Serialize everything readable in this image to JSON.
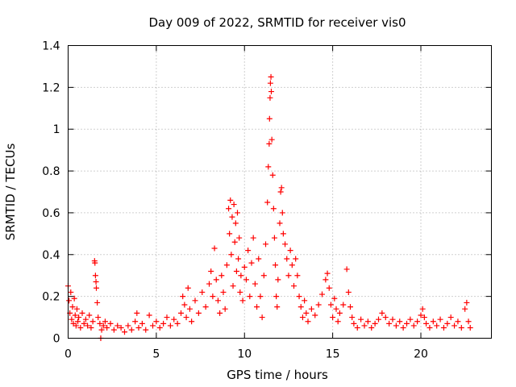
{
  "chart_data": {
    "type": "scatter",
    "title": "Day 009 of 2022, SRMTID for receiver vis0",
    "xlabel": "GPS time / hours",
    "ylabel": "SRMTID / TECUs",
    "xlim": [
      0,
      24
    ],
    "ylim": [
      0,
      1.4
    ],
    "x_ticks": [
      0,
      5,
      10,
      15,
      20
    ],
    "x_tick_labels": [
      "0",
      "5",
      "10",
      "15",
      "20"
    ],
    "y_ticks": [
      0,
      0.2,
      0.4,
      0.6,
      0.8,
      1.0,
      1.2,
      1.4
    ],
    "y_tick_labels": [
      "0",
      "0.2",
      "0.4",
      "0.6",
      "0.8",
      "1",
      "1.2",
      "1.4"
    ],
    "grid": true,
    "marker": "+",
    "color": "#ff0000",
    "series": [
      {
        "name": "SRMTID",
        "points": [
          [
            0.0,
            0.25
          ],
          [
            0.05,
            0.18
          ],
          [
            0.1,
            0.12
          ],
          [
            0.15,
            0.22
          ],
          [
            0.2,
            0.09
          ],
          [
            0.25,
            0.15
          ],
          [
            0.3,
            0.07
          ],
          [
            0.35,
            0.19
          ],
          [
            0.4,
            0.11
          ],
          [
            0.45,
            0.06
          ],
          [
            0.5,
            0.14
          ],
          [
            0.55,
            0.08
          ],
          [
            0.6,
            0.1
          ],
          [
            0.7,
            0.05
          ],
          [
            0.8,
            0.12
          ],
          [
            0.9,
            0.07
          ],
          [
            1.0,
            0.09
          ],
          [
            1.1,
            0.06
          ],
          [
            1.2,
            0.11
          ],
          [
            1.3,
            0.05
          ],
          [
            1.4,
            0.08
          ],
          [
            1.5,
            0.37
          ],
          [
            1.52,
            0.36
          ],
          [
            1.55,
            0.3
          ],
          [
            1.58,
            0.27
          ],
          [
            1.6,
            0.24
          ],
          [
            1.65,
            0.17
          ],
          [
            1.7,
            0.1
          ],
          [
            1.8,
            0.07
          ],
          [
            1.85,
            0.0
          ],
          [
            1.9,
            0.04
          ],
          [
            2.0,
            0.06
          ],
          [
            2.1,
            0.08
          ],
          [
            2.2,
            0.05
          ],
          [
            2.4,
            0.07
          ],
          [
            2.6,
            0.04
          ],
          [
            2.8,
            0.06
          ],
          [
            3.0,
            0.05
          ],
          [
            3.2,
            0.03
          ],
          [
            3.4,
            0.06
          ],
          [
            3.6,
            0.04
          ],
          [
            3.8,
            0.08
          ],
          [
            3.9,
            0.12
          ],
          [
            4.0,
            0.05
          ],
          [
            4.2,
            0.07
          ],
          [
            4.4,
            0.04
          ],
          [
            4.6,
            0.11
          ],
          [
            4.8,
            0.06
          ],
          [
            5.0,
            0.08
          ],
          [
            5.2,
            0.05
          ],
          [
            5.4,
            0.07
          ],
          [
            5.6,
            0.1
          ],
          [
            5.8,
            0.06
          ],
          [
            6.0,
            0.09
          ],
          [
            6.2,
            0.07
          ],
          [
            6.4,
            0.12
          ],
          [
            6.5,
            0.2
          ],
          [
            6.6,
            0.16
          ],
          [
            6.7,
            0.1
          ],
          [
            6.8,
            0.24
          ],
          [
            6.9,
            0.14
          ],
          [
            7.0,
            0.08
          ],
          [
            7.2,
            0.18
          ],
          [
            7.4,
            0.12
          ],
          [
            7.6,
            0.22
          ],
          [
            7.8,
            0.15
          ],
          [
            8.0,
            0.26
          ],
          [
            8.1,
            0.32
          ],
          [
            8.2,
            0.2
          ],
          [
            8.3,
            0.43
          ],
          [
            8.4,
            0.28
          ],
          [
            8.5,
            0.18
          ],
          [
            8.6,
            0.12
          ],
          [
            8.7,
            0.3
          ],
          [
            8.8,
            0.22
          ],
          [
            8.9,
            0.14
          ],
          [
            9.0,
            0.35
          ],
          [
            9.1,
            0.62
          ],
          [
            9.15,
            0.5
          ],
          [
            9.2,
            0.66
          ],
          [
            9.25,
            0.4
          ],
          [
            9.3,
            0.58
          ],
          [
            9.35,
            0.25
          ],
          [
            9.4,
            0.64
          ],
          [
            9.45,
            0.46
          ],
          [
            9.5,
            0.55
          ],
          [
            9.55,
            0.32
          ],
          [
            9.6,
            0.6
          ],
          [
            9.65,
            0.38
          ],
          [
            9.7,
            0.48
          ],
          [
            9.75,
            0.22
          ],
          [
            9.8,
            0.3
          ],
          [
            9.9,
            0.18
          ],
          [
            10.0,
            0.34
          ],
          [
            10.1,
            0.28
          ],
          [
            10.2,
            0.42
          ],
          [
            10.3,
            0.2
          ],
          [
            10.4,
            0.36
          ],
          [
            10.5,
            0.48
          ],
          [
            10.6,
            0.26
          ],
          [
            10.7,
            0.15
          ],
          [
            10.8,
            0.38
          ],
          [
            10.9,
            0.2
          ],
          [
            11.0,
            0.1
          ],
          [
            11.1,
            0.3
          ],
          [
            11.2,
            0.45
          ],
          [
            11.3,
            0.65
          ],
          [
            11.35,
            0.82
          ],
          [
            11.4,
            0.93
          ],
          [
            11.42,
            1.05
          ],
          [
            11.45,
            1.15
          ],
          [
            11.47,
            1.22
          ],
          [
            11.5,
            1.25
          ],
          [
            11.52,
            1.18
          ],
          [
            11.55,
            0.95
          ],
          [
            11.6,
            0.78
          ],
          [
            11.65,
            0.62
          ],
          [
            11.7,
            0.48
          ],
          [
            11.75,
            0.35
          ],
          [
            11.8,
            0.2
          ],
          [
            11.85,
            0.15
          ],
          [
            11.9,
            0.28
          ],
          [
            12.0,
            0.55
          ],
          [
            12.05,
            0.7
          ],
          [
            12.1,
            0.72
          ],
          [
            12.15,
            0.6
          ],
          [
            12.2,
            0.5
          ],
          [
            12.3,
            0.45
          ],
          [
            12.4,
            0.38
          ],
          [
            12.5,
            0.3
          ],
          [
            12.6,
            0.42
          ],
          [
            12.7,
            0.35
          ],
          [
            12.8,
            0.25
          ],
          [
            12.9,
            0.38
          ],
          [
            13.0,
            0.3
          ],
          [
            13.1,
            0.2
          ],
          [
            13.2,
            0.15
          ],
          [
            13.3,
            0.1
          ],
          [
            13.4,
            0.18
          ],
          [
            13.5,
            0.12
          ],
          [
            13.6,
            0.08
          ],
          [
            13.8,
            0.14
          ],
          [
            14.0,
            0.11
          ],
          [
            14.2,
            0.16
          ],
          [
            14.4,
            0.21
          ],
          [
            14.6,
            0.28
          ],
          [
            14.7,
            0.31
          ],
          [
            14.8,
            0.24
          ],
          [
            14.9,
            0.16
          ],
          [
            15.0,
            0.1
          ],
          [
            15.1,
            0.19
          ],
          [
            15.2,
            0.14
          ],
          [
            15.3,
            0.08
          ],
          [
            15.4,
            0.12
          ],
          [
            15.6,
            0.16
          ],
          [
            15.8,
            0.33
          ],
          [
            15.9,
            0.22
          ],
          [
            16.0,
            0.15
          ],
          [
            16.1,
            0.1
          ],
          [
            16.2,
            0.07
          ],
          [
            16.4,
            0.05
          ],
          [
            16.6,
            0.09
          ],
          [
            16.8,
            0.06
          ],
          [
            17.0,
            0.08
          ],
          [
            17.2,
            0.05
          ],
          [
            17.4,
            0.07
          ],
          [
            17.6,
            0.09
          ],
          [
            17.8,
            0.12
          ],
          [
            18.0,
            0.1
          ],
          [
            18.2,
            0.07
          ],
          [
            18.4,
            0.09
          ],
          [
            18.6,
            0.06
          ],
          [
            18.8,
            0.08
          ],
          [
            19.0,
            0.05
          ],
          [
            19.2,
            0.07
          ],
          [
            19.4,
            0.09
          ],
          [
            19.6,
            0.06
          ],
          [
            19.8,
            0.08
          ],
          [
            20.0,
            0.11
          ],
          [
            20.1,
            0.14
          ],
          [
            20.2,
            0.1
          ],
          [
            20.3,
            0.07
          ],
          [
            20.5,
            0.05
          ],
          [
            20.7,
            0.08
          ],
          [
            20.9,
            0.06
          ],
          [
            21.1,
            0.09
          ],
          [
            21.3,
            0.05
          ],
          [
            21.5,
            0.07
          ],
          [
            21.7,
            0.1
          ],
          [
            21.9,
            0.06
          ],
          [
            22.1,
            0.08
          ],
          [
            22.3,
            0.05
          ],
          [
            22.5,
            0.14
          ],
          [
            22.6,
            0.17
          ],
          [
            22.7,
            0.08
          ],
          [
            22.8,
            0.05
          ]
        ]
      }
    ]
  }
}
